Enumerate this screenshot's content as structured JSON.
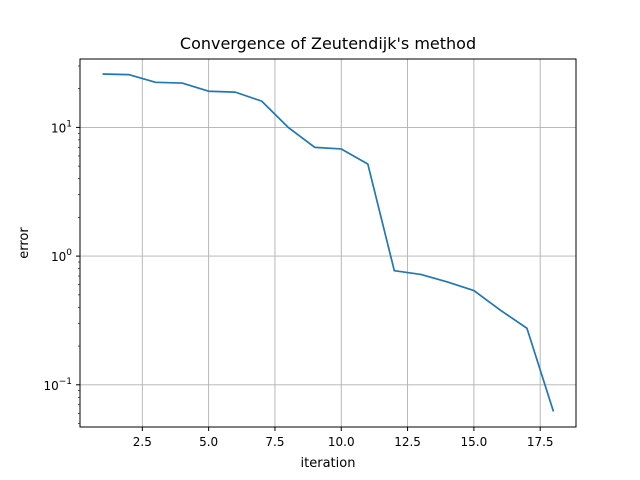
{
  "chart_data": {
    "type": "line",
    "title": "Convergence of Zeutendijk's method",
    "xlabel": "iteration",
    "ylabel": "error",
    "xlim": [
      0.15,
      18.85
    ],
    "ylim": [
      0.047,
      34
    ],
    "yscale": "log",
    "grid": true,
    "x_ticks": [
      2.5,
      5.0,
      7.5,
      10.0,
      12.5,
      15.0,
      17.5
    ],
    "x_tick_labels": [
      "2.5",
      "5.0",
      "7.5",
      "10.0",
      "12.5",
      "15.0",
      "17.5"
    ],
    "y_ticks": [
      0.1,
      1,
      10
    ],
    "y_tick_labels": [
      {
        "base": "10",
        "exp": "−1"
      },
      {
        "base": "10",
        "exp": "0"
      },
      {
        "base": "10",
        "exp": "1"
      }
    ],
    "series": [
      {
        "color": "#1f77b4",
        "x": [
          1,
          2,
          3,
          4,
          5,
          6,
          7,
          8,
          9,
          10,
          11,
          12,
          13,
          14,
          15,
          16,
          17,
          18
        ],
        "y": [
          26,
          25.7,
          22.4,
          22.1,
          19.1,
          18.8,
          16.0,
          10.0,
          7.0,
          6.8,
          5.2,
          0.77,
          0.72,
          0.63,
          0.54,
          0.38,
          0.275,
          0.062
        ]
      }
    ]
  }
}
